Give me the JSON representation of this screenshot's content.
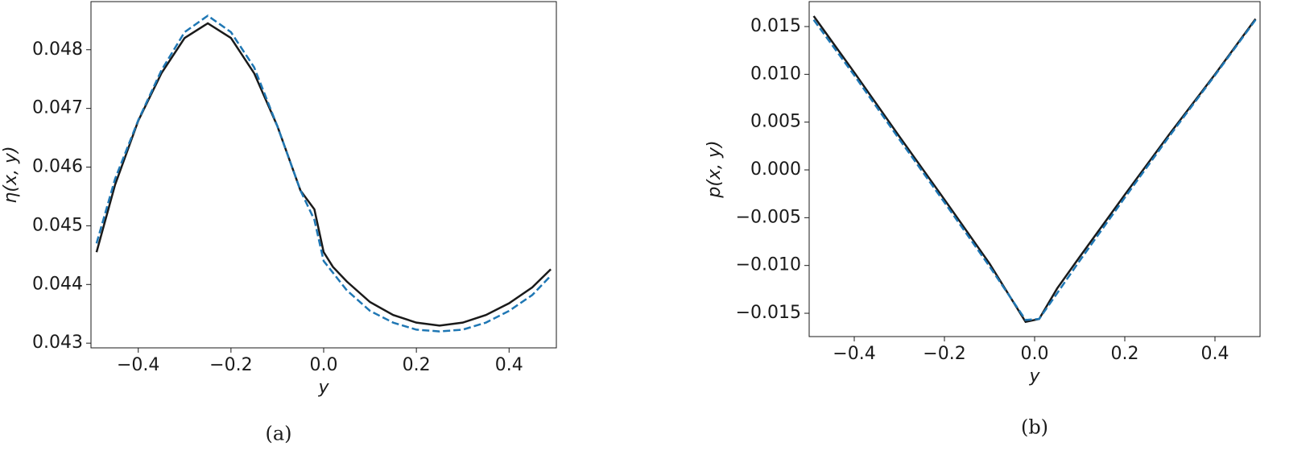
{
  "chart_data": [
    {
      "type": "line",
      "caption": "(a)",
      "x_label": "y",
      "y_label": "η(x, y)",
      "xlim": [
        -0.502,
        0.502
      ],
      "ylim": [
        0.04292,
        0.04882
      ],
      "xticks": [
        {
          "value": -0.4,
          "label": "−0.4"
        },
        {
          "value": -0.2,
          "label": "−0.2"
        },
        {
          "value": 0,
          "label": "0.0"
        },
        {
          "value": 0.2,
          "label": "0.2"
        },
        {
          "value": 0.4,
          "label": "0.4"
        }
      ],
      "yticks": [
        0.043,
        0.044,
        0.045,
        0.046,
        0.047,
        0.048
      ],
      "x": [
        -0.49,
        -0.45,
        -0.4,
        -0.35,
        -0.3,
        -0.25,
        -0.2,
        -0.15,
        -0.1,
        -0.05,
        -0.02,
        0,
        0.02,
        0.05,
        0.1,
        0.15,
        0.2,
        0.25,
        0.3,
        0.35,
        0.4,
        0.45,
        0.49
      ],
      "series": [
        {
          "color": "#1a1a1a",
          "linestyle": "solid",
          "values": [
            0.04455,
            0.0457,
            0.04679,
            0.0476,
            0.0482,
            0.04845,
            0.0482,
            0.0476,
            0.0467,
            0.0456,
            0.04528,
            0.04455,
            0.0443,
            0.04405,
            0.0437,
            0.04348,
            0.04335,
            0.0433,
            0.04335,
            0.04348,
            0.04368,
            0.04395,
            0.04426
          ]
        },
        {
          "color": "#1f77b4",
          "linestyle": "dashed",
          "values": [
            0.0447,
            0.0458,
            0.0468,
            0.04765,
            0.0483,
            0.04858,
            0.0483,
            0.0477,
            0.0467,
            0.0456,
            0.0451,
            0.0444,
            0.0442,
            0.0439,
            0.04355,
            0.04335,
            0.04323,
            0.0432,
            0.04323,
            0.04335,
            0.04355,
            0.04382,
            0.04415
          ]
        }
      ]
    },
    {
      "type": "line",
      "caption": "(b)",
      "x_label": "y",
      "y_label": "p(x, y)",
      "xlim": [
        -0.5,
        0.5
      ],
      "ylim": [
        -0.01744,
        0.01761
      ],
      "xticks": [
        {
          "value": -0.4,
          "label": "−0.4"
        },
        {
          "value": -0.2,
          "label": "−0.2"
        },
        {
          "value": 0,
          "label": "0.0"
        },
        {
          "value": 0.2,
          "label": "0.2"
        },
        {
          "value": 0.4,
          "label": "0.4"
        }
      ],
      "yticks": [
        {
          "value": -0.015,
          "label": "−0.015"
        },
        {
          "value": -0.01,
          "label": "−0.010"
        },
        {
          "value": -0.005,
          "label": "−0.005"
        },
        {
          "value": 0,
          "label": "0.000"
        },
        {
          "value": 0.005,
          "label": "0.005"
        },
        {
          "value": 0.01,
          "label": "0.010"
        },
        {
          "value": 0.015,
          "label": "0.015"
        }
      ],
      "x": [
        -0.49,
        -0.4,
        -0.3,
        -0.2,
        -0.1,
        -0.02,
        0.01,
        0.05,
        0.1,
        0.2,
        0.3,
        0.4,
        0.49
      ],
      "series": [
        {
          "color": "#1a1a1a",
          "linestyle": "solid",
          "values": [
            0.0161,
            0.0102,
            0.0035,
            -0.0031,
            -0.0098,
            -0.0159,
            -0.0156,
            -0.0124,
            -0.0091,
            -0.0026,
            0.0038,
            0.01,
            0.0158
          ]
        },
        {
          "color": "#1f77b4",
          "linestyle": "dashed",
          "values": [
            0.0157,
            0.0099,
            0.0032,
            -0.0034,
            -0.0101,
            -0.0157,
            -0.0156,
            -0.0129,
            -0.0095,
            -0.0029,
            0.0036,
            0.0099,
            0.0157
          ]
        }
      ]
    }
  ]
}
